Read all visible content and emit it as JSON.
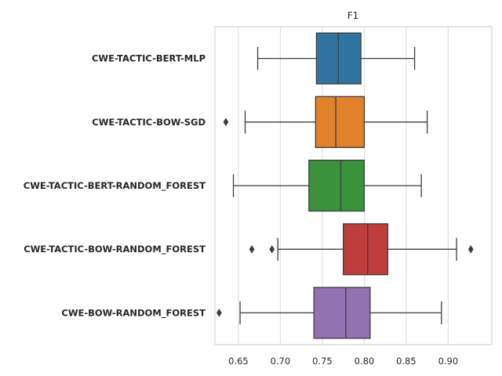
{
  "chart_data": {
    "type": "boxplot",
    "orientation": "horizontal",
    "title": "F1",
    "xlabel": "",
    "ylabel": "",
    "xlim": [
      0.622,
      0.952
    ],
    "xticks": [
      0.65,
      0.7,
      0.75,
      0.8,
      0.85,
      0.9
    ],
    "xtick_labels": [
      "0.65",
      "0.70",
      "0.75",
      "0.80",
      "0.85",
      "0.90"
    ],
    "grid": "vertical",
    "categories": [
      "CWE-TACTIC-BERT-MLP",
      "CWE-TACTIC-BOW-SGD",
      "CWE-TACTIC-BERT-RANDOM_FOREST",
      "CWE-TACTIC-BOW-RANDOM_FOREST",
      "CWE-BOW-RANDOM_FOREST"
    ],
    "boxes": [
      {
        "whisker_low": 0.673,
        "q1": 0.743,
        "median": 0.769,
        "q3": 0.796,
        "whisker_high": 0.86,
        "outliers": [],
        "color": "#3274a1"
      },
      {
        "whisker_low": 0.658,
        "q1": 0.742,
        "median": 0.766,
        "q3": 0.8,
        "whisker_high": 0.875,
        "outliers": [
          0.635
        ],
        "color": "#e1812c"
      },
      {
        "whisker_low": 0.644,
        "q1": 0.734,
        "median": 0.772,
        "q3": 0.8,
        "whisker_high": 0.868,
        "outliers": [],
        "color": "#3a923a"
      },
      {
        "whisker_low": 0.697,
        "q1": 0.775,
        "median": 0.804,
        "q3": 0.828,
        "whisker_high": 0.91,
        "outliers": [
          0.666,
          0.69,
          0.927
        ],
        "color": "#c03d3e"
      },
      {
        "whisker_low": 0.652,
        "q1": 0.74,
        "median": 0.778,
        "q3": 0.807,
        "whisker_high": 0.892,
        "outliers": [
          0.627
        ],
        "color": "#9372b2"
      }
    ]
  }
}
